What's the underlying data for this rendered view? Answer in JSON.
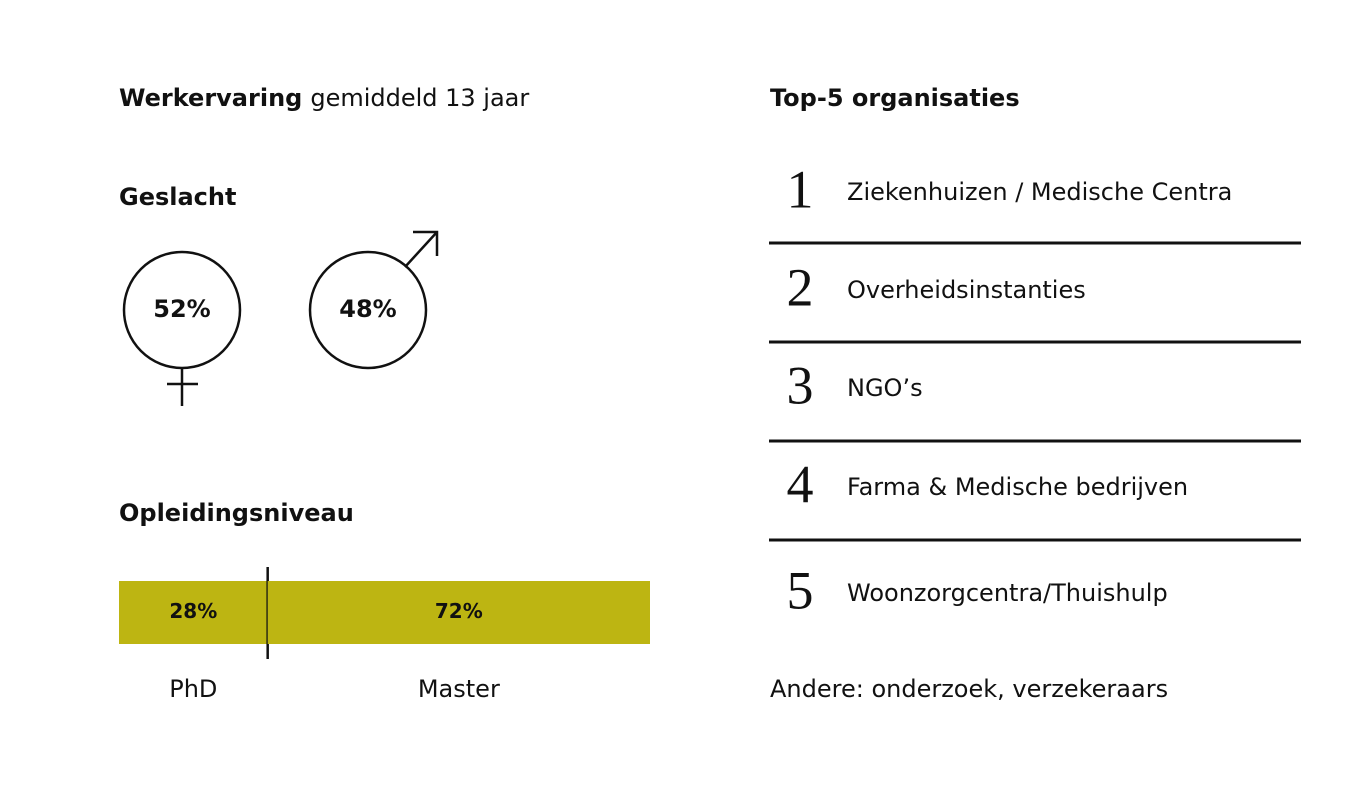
{
  "experience": {
    "label": "Werkervaring",
    "text": "gemiddeld 13 jaar"
  },
  "gender": {
    "title": "Geslacht",
    "female": {
      "value": 52,
      "value_label": "52%"
    },
    "male": {
      "value": 48,
      "value_label": "48%"
    }
  },
  "education": {
    "title": "Opleidingsniveau",
    "color": "#bdb512",
    "segments": [
      {
        "name": "PhD",
        "value": 28,
        "value_label": "28%"
      },
      {
        "name": "Master",
        "value": 72,
        "value_label": "72%"
      }
    ]
  },
  "organisations": {
    "title": "Top-5 organisaties",
    "items": [
      {
        "rank": 1,
        "name": "Ziekenhuizen / Medische Centra"
      },
      {
        "rank": 2,
        "name": "Overheidsinstanties"
      },
      {
        "rank": 3,
        "name": "NGO’s"
      },
      {
        "rank": 4,
        "name": "Farma & Medische bedrijven"
      },
      {
        "rank": 5,
        "name": "Woonzorgcentra/Thuishulp"
      }
    ],
    "note": "Andere: onderzoek, verzekeraars"
  }
}
